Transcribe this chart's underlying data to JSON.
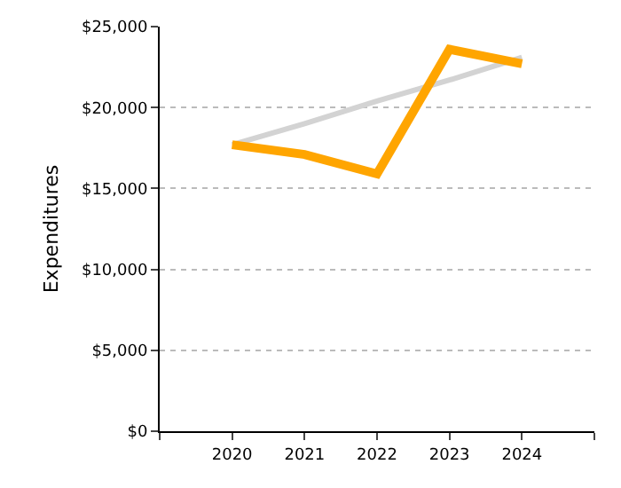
{
  "chart_data": {
    "type": "line",
    "ylabel": "Expenditures",
    "x": [
      2020,
      2021,
      2022,
      2023,
      2024
    ],
    "series": [
      {
        "color": "#d3d3d3",
        "values": [
          17700,
          19000,
          20400,
          21700,
          23100
        ]
      },
      {
        "color": "#ffa500",
        "values": [
          17700,
          17100,
          15900,
          23600,
          22700
        ]
      }
    ],
    "xlim": [
      2019,
      2025
    ],
    "xticks": [
      {
        "value": 2019,
        "label": null
      },
      2020,
      2021,
      2022,
      2023,
      2024,
      {
        "value": 2025,
        "label": null
      }
    ],
    "ylim": [
      0,
      25000
    ],
    "yticks": [
      {
        "value": 0,
        "label": "$0"
      },
      {
        "value": 5000,
        "label": "$5,000"
      },
      {
        "value": 10000,
        "label": "$10,000"
      },
      {
        "value": 15000,
        "label": "$15,000"
      },
      {
        "value": 20000,
        "label": "$20,000"
      },
      {
        "value": 25000,
        "label": "$25,000"
      }
    ],
    "grid": "y",
    "marker": "none",
    "line_style": "solid"
  }
}
